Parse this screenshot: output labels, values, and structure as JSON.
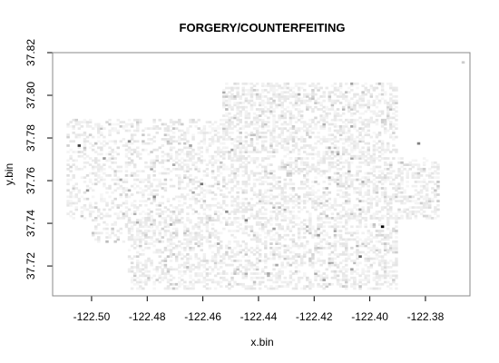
{
  "chart_data": {
    "type": "heatmap",
    "title": "FORGERY/COUNTERFEITING",
    "xlabel": "x.bin",
    "ylabel": "y.bin",
    "xlim": [
      -122.514,
      -122.364
    ],
    "ylim": [
      37.706,
      37.82
    ],
    "x_ticks": [
      -122.5,
      -122.48,
      -122.46,
      -122.44,
      -122.42,
      -122.4,
      -122.38
    ],
    "x_tick_labels": [
      "-122.50",
      "-122.48",
      "-122.46",
      "-122.44",
      "-122.42",
      "-122.40",
      "-122.38"
    ],
    "y_ticks": [
      37.72,
      37.74,
      37.76,
      37.78,
      37.8,
      37.82
    ],
    "y_tick_labels": [
      "37.72",
      "37.74",
      "37.76",
      "37.78",
      "37.80",
      "37.82"
    ],
    "grid": false,
    "legend": "none",
    "bin_width": 0.001,
    "colors": {
      "scale_low": "#ffffff",
      "scale_high": "#000000",
      "frame": "#888888"
    },
    "regions": [
      {
        "x": [
          -122.509,
          -122.45
        ],
        "y": [
          37.742,
          37.788
        ],
        "density": 0.35
      },
      {
        "x": [
          -122.5,
          -122.475
        ],
        "y": [
          37.731,
          37.742
        ],
        "density": 0.25
      },
      {
        "x": [
          -122.487,
          -122.39
        ],
        "y": [
          37.709,
          37.742
        ],
        "density": 0.4
      },
      {
        "x": [
          -122.45,
          -122.375
        ],
        "y": [
          37.742,
          37.77
        ],
        "density": 0.45
      },
      {
        "x": [
          -122.453,
          -122.39
        ],
        "y": [
          37.77,
          37.805
        ],
        "density": 0.45
      },
      {
        "x": [
          -122.42,
          -122.4
        ],
        "y": [
          37.71,
          37.72
        ],
        "density": 0.2
      }
    ],
    "hotspots": [
      {
        "x": -122.396,
        "y": 37.738,
        "value": 1.0
      },
      {
        "x": -122.505,
        "y": 37.776,
        "value": 0.75
      },
      {
        "x": -122.404,
        "y": 37.724,
        "value": 0.6
      },
      {
        "x": -122.383,
        "y": 37.777,
        "value": 0.5
      },
      {
        "x": -122.461,
        "y": 37.758,
        "value": 0.55
      },
      {
        "x": -122.445,
        "y": 37.741,
        "value": 0.5
      },
      {
        "x": -122.478,
        "y": 37.752,
        "value": 0.45
      },
      {
        "x": -122.487,
        "y": 37.778,
        "value": 0.45
      },
      {
        "x": -122.452,
        "y": 37.745,
        "value": 0.45
      },
      {
        "x": -122.502,
        "y": 37.755,
        "value": 0.4
      },
      {
        "x": -122.419,
        "y": 37.734,
        "value": 0.4
      },
      {
        "x": -122.437,
        "y": 37.716,
        "value": 0.35
      },
      {
        "x": -122.367,
        "y": 37.815,
        "value": 0.2
      }
    ]
  }
}
